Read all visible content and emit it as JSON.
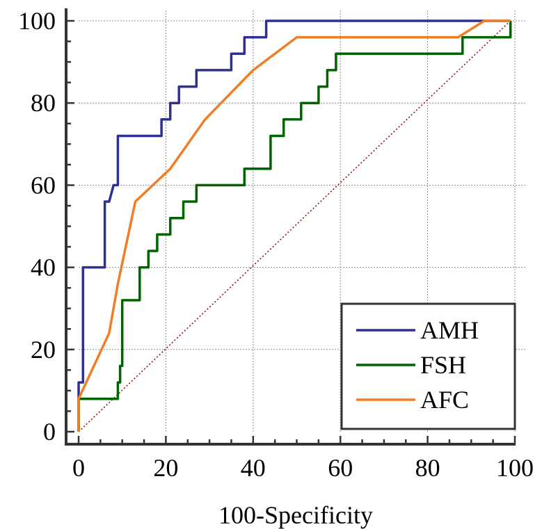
{
  "chart_data": {
    "type": "line",
    "title": "",
    "xlabel": "100-Specificity",
    "ylabel": "",
    "xlim": [
      0,
      100
    ],
    "ylim": [
      0,
      100
    ],
    "x_ticks": [
      "0",
      "20",
      "40",
      "60",
      "80",
      "100"
    ],
    "y_ticks": [
      "0",
      "20",
      "40",
      "60",
      "80",
      "100"
    ],
    "grid": true,
    "legend_position": "bottom-right",
    "series": [
      {
        "name": "AMH",
        "color": "#2e3192",
        "step": true,
        "points": [
          [
            0,
            0
          ],
          [
            0,
            8
          ],
          [
            0,
            12
          ],
          [
            1,
            12
          ],
          [
            1,
            40
          ],
          [
            6,
            40
          ],
          [
            6,
            56
          ],
          [
            7,
            56
          ],
          [
            8,
            60
          ],
          [
            9,
            60
          ],
          [
            9,
            72
          ],
          [
            19,
            72
          ],
          [
            19,
            76
          ],
          [
            21,
            76
          ],
          [
            21,
            80
          ],
          [
            23,
            80
          ],
          [
            23,
            84
          ],
          [
            27,
            84
          ],
          [
            27,
            88
          ],
          [
            35,
            88
          ],
          [
            35,
            92
          ],
          [
            38,
            92
          ],
          [
            38,
            96
          ],
          [
            43,
            96
          ],
          [
            43,
            100
          ],
          [
            99,
            100
          ]
        ]
      },
      {
        "name": "FSH",
        "color": "#006400",
        "step": true,
        "points": [
          [
            0,
            0
          ],
          [
            0,
            8
          ],
          [
            9,
            8
          ],
          [
            9,
            12
          ],
          [
            9.5,
            12
          ],
          [
            9.5,
            16
          ],
          [
            10,
            16
          ],
          [
            10,
            32
          ],
          [
            14,
            32
          ],
          [
            14,
            40
          ],
          [
            16,
            40
          ],
          [
            16,
            44
          ],
          [
            18,
            44
          ],
          [
            18,
            48
          ],
          [
            21,
            48
          ],
          [
            21,
            52
          ],
          [
            24,
            52
          ],
          [
            24,
            56
          ],
          [
            27,
            56
          ],
          [
            27,
            60
          ],
          [
            38,
            60
          ],
          [
            38,
            64
          ],
          [
            44,
            64
          ],
          [
            44,
            72
          ],
          [
            47,
            72
          ],
          [
            47,
            76
          ],
          [
            51,
            76
          ],
          [
            51,
            80
          ],
          [
            55,
            80
          ],
          [
            55,
            84
          ],
          [
            57,
            84
          ],
          [
            57,
            88
          ],
          [
            59,
            88
          ],
          [
            59,
            92
          ],
          [
            88,
            92
          ],
          [
            88,
            96
          ],
          [
            99,
            96
          ],
          [
            99,
            100
          ]
        ]
      },
      {
        "name": "AFC",
        "color": "#f07e26",
        "step": false,
        "points": [
          [
            0,
            0
          ],
          [
            0,
            8
          ],
          [
            7,
            24
          ],
          [
            9,
            36
          ],
          [
            13,
            56
          ],
          [
            21,
            64
          ],
          [
            29,
            76
          ],
          [
            40,
            88
          ],
          [
            50,
            96
          ],
          [
            87,
            96
          ],
          [
            93,
            100
          ],
          [
            99,
            100
          ]
        ]
      },
      {
        "name": "",
        "color": "#8b0000",
        "dotted": true,
        "points": [
          [
            0,
            0
          ],
          [
            99,
            100
          ]
        ]
      }
    ]
  }
}
